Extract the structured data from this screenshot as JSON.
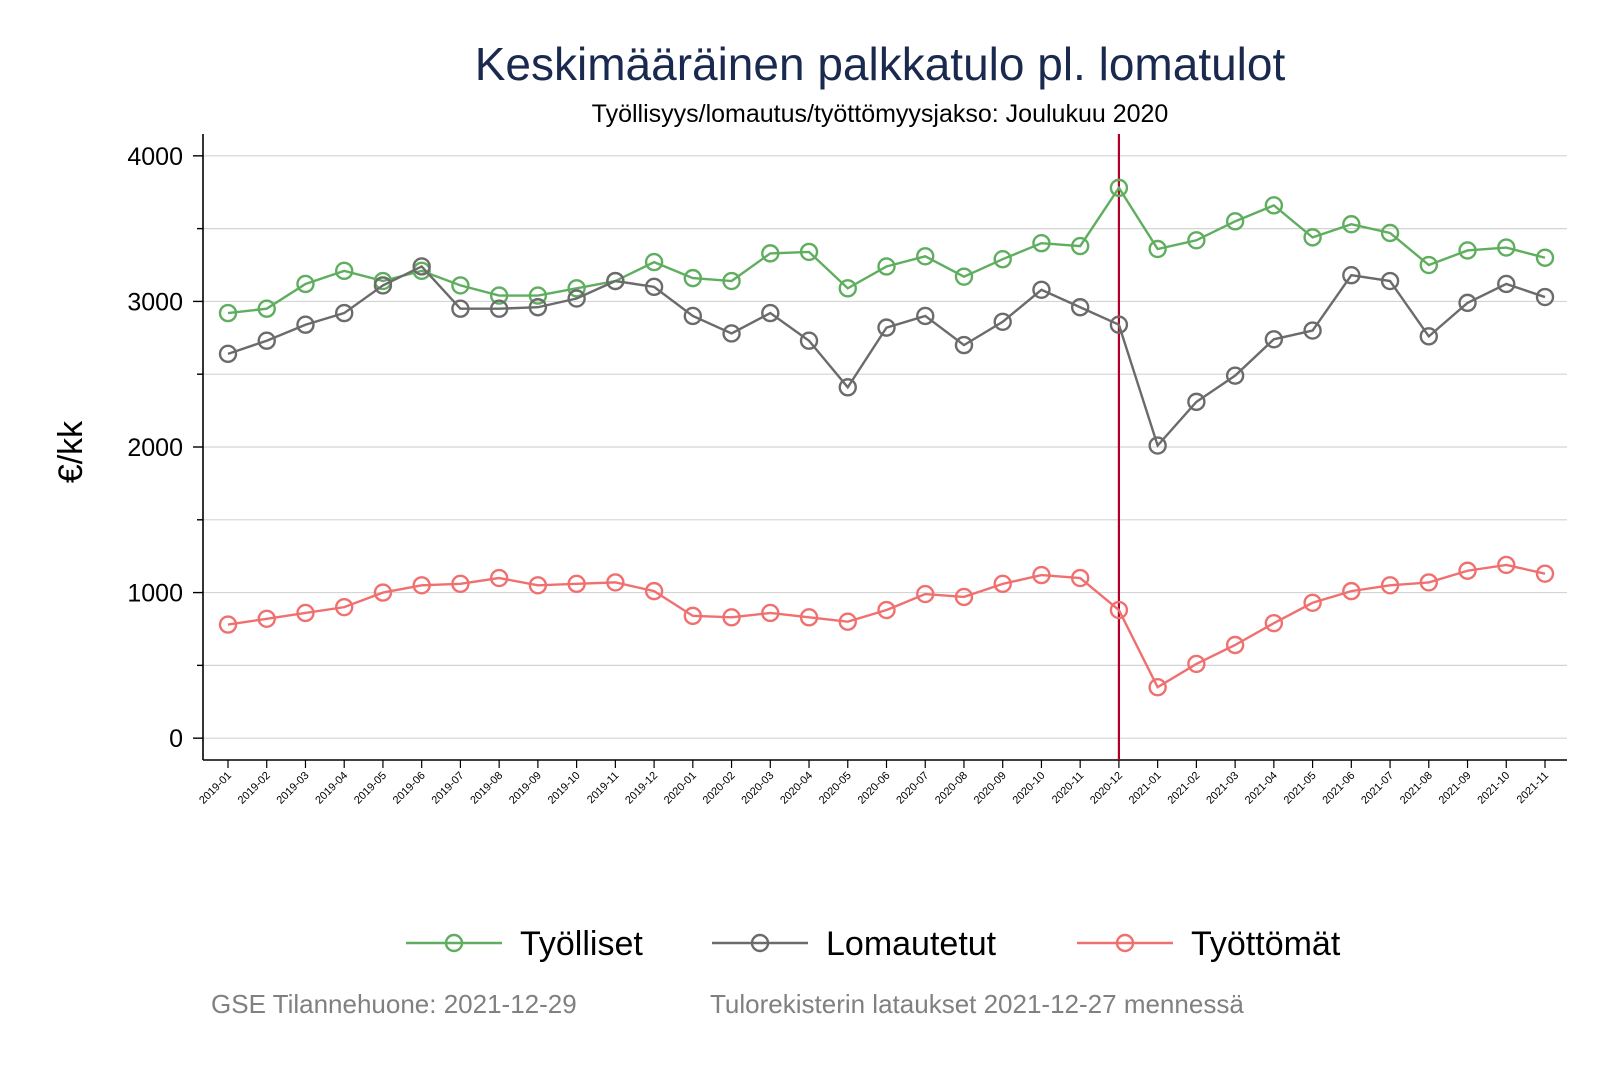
{
  "chart_data": {
    "type": "line",
    "title": "Keskimääräinen palkkatulo pl. lomatulot",
    "subtitle": "Työllisyys/lomautus/työttömyysjakso: Joulukuu 2020",
    "ylabel": "€/kk",
    "ylim": [
      -150,
      4150
    ],
    "yticks": [
      0,
      1000,
      2000,
      3000,
      4000
    ],
    "grid": true,
    "legend_position": "bottom",
    "reference_line": {
      "x": "2020-12",
      "color": "#b0002a"
    },
    "x": [
      "2019-01",
      "2019-02",
      "2019-03",
      "2019-04",
      "2019-05",
      "2019-06",
      "2019-07",
      "2019-08",
      "2019-09",
      "2019-10",
      "2019-11",
      "2019-12",
      "2020-01",
      "2020-02",
      "2020-03",
      "2020-04",
      "2020-05",
      "2020-06",
      "2020-07",
      "2020-08",
      "2020-09",
      "2020-10",
      "2020-11",
      "2020-12",
      "2021-01",
      "2021-02",
      "2021-03",
      "2021-04",
      "2021-05",
      "2021-06",
      "2021-07",
      "2021-08",
      "2021-09",
      "2021-10",
      "2021-11"
    ],
    "series": [
      {
        "name": "Työlliset",
        "color": "#5fae5f",
        "values": [
          2920,
          2950,
          3120,
          3210,
          3140,
          3210,
          3110,
          3040,
          3040,
          3090,
          3140,
          3270,
          3160,
          3140,
          3330,
          3340,
          3090,
          3240,
          3310,
          3170,
          3290,
          3400,
          3380,
          3780,
          3360,
          3420,
          3550,
          3660,
          3440,
          3530,
          3470,
          3250,
          3350,
          3370,
          3300
        ]
      },
      {
        "name": "Lomautetut",
        "color": "#6b6b6b",
        "values": [
          2640,
          2730,
          2840,
          2920,
          3110,
          3240,
          2950,
          2950,
          2960,
          3020,
          3140,
          3100,
          2900,
          2780,
          2920,
          2730,
          2410,
          2820,
          2900,
          2700,
          2860,
          3080,
          2960,
          2840,
          2010,
          2310,
          2490,
          2740,
          2800,
          3180,
          3140,
          2760,
          2990,
          3120,
          3030
        ]
      },
      {
        "name": "Työttömät",
        "color": "#f07070",
        "values": [
          780,
          820,
          860,
          900,
          1000,
          1050,
          1060,
          1100,
          1050,
          1060,
          1070,
          1010,
          840,
          830,
          860,
          830,
          800,
          880,
          990,
          970,
          1060,
          1120,
          1100,
          880,
          350,
          510,
          640,
          790,
          930,
          1010,
          1050,
          1070,
          1150,
          1190,
          1130
        ]
      }
    ]
  },
  "footer": {
    "left": "GSE Tilannehuone: 2021-12-29",
    "right": "Tulorekisterin lataukset 2021-12-27 mennessä"
  }
}
